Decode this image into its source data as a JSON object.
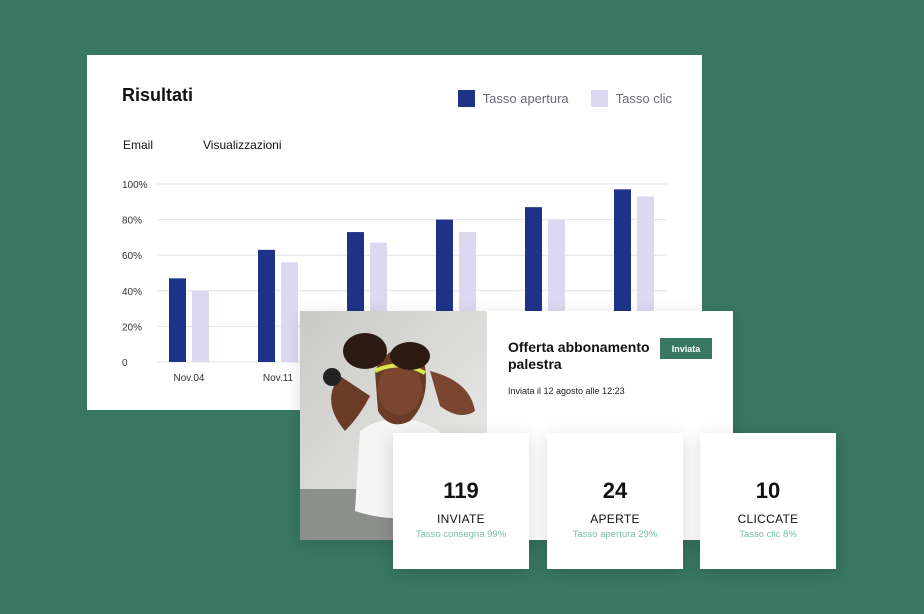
{
  "results": {
    "title": "Risultati",
    "tabs": [
      "Email",
      "Visualizzazioni"
    ],
    "legend": [
      {
        "label": "Tasso apertura",
        "color": "#1e3388"
      },
      {
        "label": "Tasso clic",
        "color": "#dcd8f2"
      }
    ]
  },
  "chart_data": {
    "type": "bar",
    "title": "Risultati",
    "y_tick_labels": [
      "0",
      "20%",
      "40%",
      "60%",
      "80%",
      "100%"
    ],
    "ylim": [
      0,
      100
    ],
    "grid": true,
    "legend_position": "top-right",
    "categories_visible": [
      "Nov.04",
      "Nov.11"
    ],
    "series": [
      {
        "name": "Tasso apertura",
        "color": "#1e3388",
        "values": [
          47,
          63,
          73,
          80,
          87,
          97
        ]
      },
      {
        "name": "Tasso clic",
        "color": "#dcd8f2",
        "values": [
          40,
          56,
          67,
          73,
          80,
          93
        ]
      }
    ]
  },
  "campaign": {
    "title": "Offerta abbonamento palestra",
    "badge": "Inviata",
    "sent_date": "Inviata il 12 agosto alle 12:23"
  },
  "stats": [
    {
      "number": "119",
      "label": "INVIATE",
      "sub": "Tasso consegna 99%"
    },
    {
      "number": "24",
      "label": "APERTE",
      "sub": "Tasso apertura 29%"
    },
    {
      "number": "10",
      "label": "CLICCATE",
      "sub": "Tasso clic 8%"
    }
  ]
}
